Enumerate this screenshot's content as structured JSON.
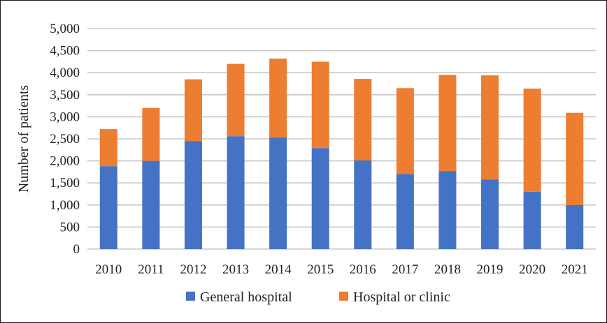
{
  "chart_data": {
    "type": "bar",
    "stacked": true,
    "title": "",
    "xlabel": "",
    "ylabel": "Number of patients",
    "ylim": [
      0,
      5000
    ],
    "yticks": [
      0,
      500,
      1000,
      1500,
      2000,
      2500,
      3000,
      3500,
      4000,
      4500,
      5000
    ],
    "ytick_labels": [
      "0",
      "500",
      "1,000",
      "1,500",
      "2,000",
      "2,500",
      "3,000",
      "3,500",
      "4,000",
      "4,500",
      "5,000"
    ],
    "grid": true,
    "legend_position": "bottom",
    "categories": [
      "2010",
      "2011",
      "2012",
      "2013",
      "2014",
      "2015",
      "2016",
      "2017",
      "2018",
      "2019",
      "2020",
      "2021"
    ],
    "series": [
      {
        "name": "General hospital",
        "color": "#4472c4",
        "values": [
          1880,
          2000,
          2450,
          2560,
          2530,
          2290,
          2010,
          1700,
          1770,
          1580,
          1300,
          1000
        ]
      },
      {
        "name": "Hospital or clinic",
        "color": "#ed7d31",
        "values": [
          840,
          1200,
          1400,
          1640,
          1790,
          1960,
          1850,
          1950,
          2180,
          2360,
          2340,
          2090
        ]
      }
    ]
  }
}
